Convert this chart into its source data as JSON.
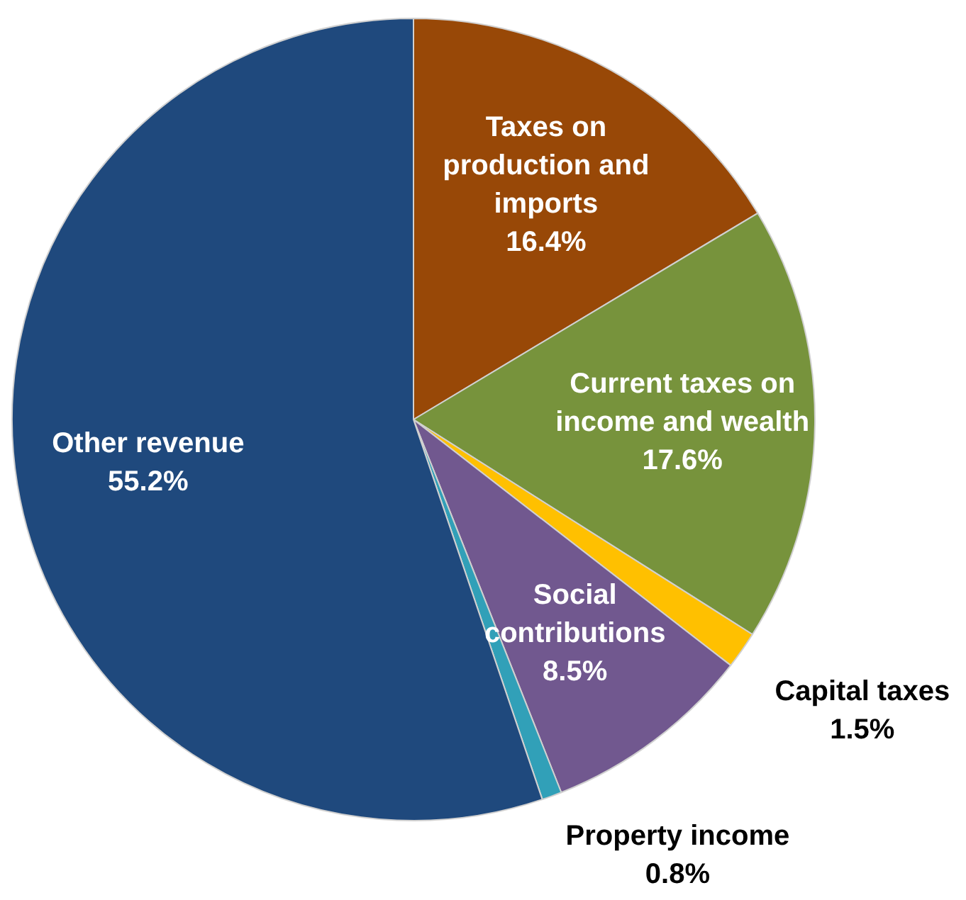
{
  "chart_data": {
    "type": "pie",
    "categories": [
      "Taxes on production and imports",
      "Current taxes on income and wealth",
      "Capital taxes",
      "Social contributions",
      "Property income",
      "Other revenue"
    ],
    "values": [
      16.4,
      17.6,
      1.5,
      8.5,
      0.8,
      55.2
    ],
    "value_labels": [
      "16.4%",
      "17.6%",
      "1.5%",
      "8.5%",
      "0.8%",
      "55.2%"
    ],
    "colors": [
      "#984807",
      "#77933c",
      "#ffc000",
      "#71588f",
      "#31a0b8",
      "#1f497d"
    ],
    "legend": false
  }
}
